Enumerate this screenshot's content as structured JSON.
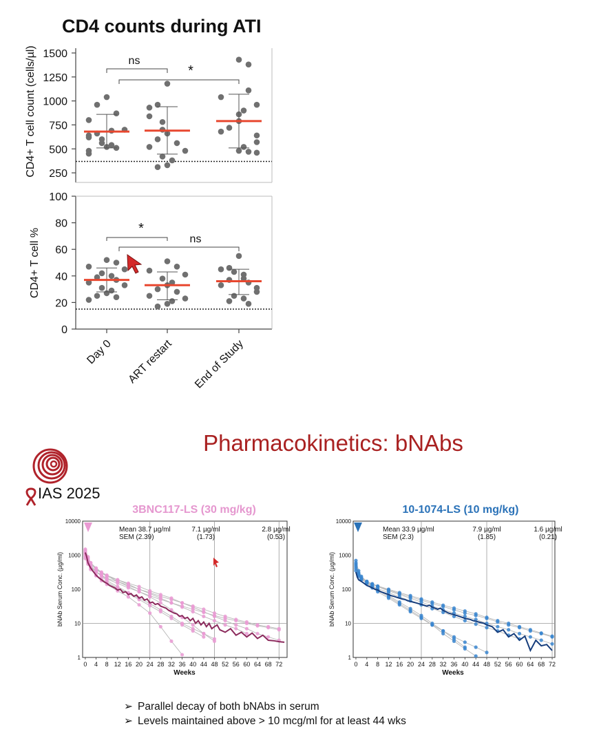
{
  "cd4_panel": {
    "title": "CD4 counts during ATI",
    "categories": [
      "Day 0",
      "ART restart",
      "End of Study"
    ],
    "accent_color": "#e8472f",
    "dot_color": "#707070"
  },
  "chart_data": [
    {
      "type": "scatter",
      "title": "CD4 counts during ATI",
      "ylabel": "CD4+ T cell count (cells/µl)",
      "categories": [
        "Day 0",
        "ART restart",
        "End of Study"
      ],
      "ylim": [
        150,
        1550
      ],
      "yticks": [
        250,
        500,
        750,
        1000,
        1250,
        1500
      ],
      "reference_line": 350,
      "median": [
        680,
        690,
        790
      ],
      "error_bars": [
        [
          510,
          860
        ],
        [
          445,
          940
        ],
        [
          510,
          1070
        ]
      ],
      "points": [
        [
          1040,
          960,
          870,
          800,
          700,
          690,
          660,
          640,
          620,
          600,
          560,
          540,
          520,
          510,
          480,
          450
        ],
        [
          1180,
          960,
          930,
          840,
          780,
          700,
          660,
          600,
          560,
          520,
          480,
          420,
          380,
          330,
          310
        ],
        [
          1430,
          1380,
          1110,
          1040,
          960,
          900,
          860,
          790,
          720,
          680,
          640,
          570,
          520,
          480,
          470,
          460
        ]
      ],
      "annotations": [
        {
          "label": "ns",
          "from": "Day 0",
          "to": "ART restart"
        },
        {
          "label": "*",
          "from": "Day 0",
          "to": "End of Study"
        }
      ]
    },
    {
      "type": "scatter",
      "ylabel": "CD4+ T cell %",
      "categories": [
        "Day 0",
        "ART restart",
        "End of Study"
      ],
      "ylim": [
        0,
        100
      ],
      "yticks": [
        0,
        20,
        40,
        60,
        80,
        100
      ],
      "reference_line": 15,
      "median": [
        37,
        33,
        36
      ],
      "error_bars": [
        [
          28,
          46
        ],
        [
          22,
          43
        ],
        [
          26,
          45
        ]
      ],
      "points": [
        [
          52,
          50,
          47,
          45,
          42,
          40,
          39,
          37,
          35,
          33,
          31,
          29,
          27,
          25,
          24,
          22
        ],
        [
          51,
          47,
          44,
          41,
          38,
          35,
          33,
          30,
          28,
          25,
          23,
          21,
          19,
          17
        ],
        [
          55,
          46,
          45,
          43,
          41,
          38,
          37,
          35,
          33,
          31,
          28,
          25,
          23,
          21,
          19
        ]
      ],
      "annotations": [
        {
          "label": "*",
          "from": "Day 0",
          "to": "ART restart"
        },
        {
          "label": "ns",
          "from": "Day 0",
          "to": "End of Study"
        }
      ]
    },
    {
      "type": "line",
      "title": "3BNC117-LS (30 mg/kg)",
      "xlabel": "Weeks",
      "ylabel": "bNAb Serum Conc. (µg/ml)",
      "yscale": "log",
      "xlim": [
        -1,
        75
      ],
      "ylim": [
        1,
        10000
      ],
      "xticks": [
        0,
        4,
        8,
        12,
        16,
        20,
        24,
        28,
        32,
        36,
        40,
        44,
        48,
        52,
        56,
        60,
        64,
        68,
        72
      ],
      "yticks": [
        1,
        10,
        100,
        1000,
        10000
      ],
      "color": "#8b2a5c",
      "light_color": "#e3a7d0",
      "marker_color": "#ea9ad3",
      "vlines": [
        24,
        48,
        72
      ],
      "hline": 10,
      "stats": [
        {
          "mean": "Mean 38.7 µg/ml",
          "sem": "SEM (2.39)"
        },
        {
          "mean": "7.1 µg/ml",
          "sem": "(1.73)"
        },
        {
          "mean": "2.8 µg/ml",
          "sem": "(0.53)"
        }
      ],
      "mean_series": {
        "x": [
          0,
          0.5,
          1,
          2,
          3,
          4,
          5,
          6,
          7,
          8,
          9,
          10,
          11,
          12,
          13,
          14,
          15,
          16,
          17,
          18,
          19,
          20,
          21,
          22,
          23,
          24,
          25,
          26,
          27,
          28,
          29,
          30,
          31,
          32,
          33,
          34,
          35,
          36,
          37,
          38,
          39,
          40,
          41,
          42,
          43,
          44,
          45,
          46,
          47,
          48,
          49,
          50,
          52,
          54,
          56,
          58,
          60,
          62,
          64,
          66,
          68,
          70,
          72,
          74
        ],
        "y": [
          1200,
          900,
          600,
          420,
          330,
          260,
          220,
          190,
          165,
          150,
          130,
          120,
          110,
          95,
          100,
          80,
          85,
          70,
          75,
          62,
          68,
          55,
          60,
          48,
          52,
          40,
          42,
          36,
          38,
          32,
          30,
          28,
          24,
          22,
          20,
          19,
          16,
          17,
          14,
          15,
          12,
          14,
          10,
          12,
          9,
          11,
          8,
          10,
          7,
          8,
          9,
          6.5,
          5.5,
          7,
          4.5,
          5.5,
          4,
          5.2,
          3.6,
          4.5,
          3.2,
          3.1,
          2.9,
          2.8
        ]
      },
      "individual_series": [
        {
          "x": [
            0,
            1,
            2,
            4,
            6,
            8,
            12,
            16,
            20,
            24,
            28,
            32,
            36,
            40,
            44,
            48
          ],
          "y": [
            1500,
            900,
            600,
            400,
            300,
            250,
            170,
            120,
            85,
            60,
            40,
            25,
            15,
            9,
            5,
            3
          ]
        },
        {
          "x": [
            0,
            1,
            2,
            4,
            6,
            8,
            12,
            16,
            20,
            24,
            28,
            32,
            36,
            40,
            44,
            48,
            52,
            56,
            60,
            64,
            68,
            72
          ],
          "y": [
            1300,
            800,
            550,
            380,
            300,
            240,
            190,
            150,
            120,
            90,
            70,
            55,
            40,
            30,
            22,
            16,
            12,
            9,
            7,
            5,
            4,
            3.2
          ]
        },
        {
          "x": [
            0,
            1,
            2,
            4,
            6,
            8,
            12,
            16,
            20,
            24,
            28,
            32,
            36,
            40,
            44,
            48,
            52,
            56,
            60,
            64,
            68,
            72
          ],
          "y": [
            1000,
            700,
            480,
            330,
            260,
            210,
            170,
            130,
            100,
            80,
            62,
            50,
            40,
            32,
            26,
            20,
            16,
            13,
            11,
            9,
            8,
            7
          ]
        },
        {
          "x": [
            0,
            1,
            2,
            4,
            6,
            8,
            12,
            16,
            20,
            24,
            28,
            32,
            36
          ],
          "y": [
            1100,
            600,
            400,
            250,
            180,
            140,
            90,
            60,
            35,
            20,
            8,
            3,
            1.2
          ]
        },
        {
          "x": [
            0,
            1,
            2,
            4,
            6,
            8,
            12,
            16,
            20,
            24,
            28,
            32,
            36,
            40,
            44,
            48,
            52,
            56,
            60,
            64,
            68,
            72
          ],
          "y": [
            900,
            650,
            450,
            320,
            250,
            200,
            150,
            110,
            85,
            65,
            50,
            40,
            32,
            26,
            21,
            17,
            14,
            12,
            10,
            8.5,
            7.5,
            6.5
          ]
        },
        {
          "x": [
            0,
            1,
            2,
            4,
            6,
            8,
            12,
            16,
            20,
            24,
            28,
            32,
            36,
            40,
            44,
            48
          ],
          "y": [
            1200,
            750,
            500,
            330,
            240,
            180,
            120,
            80,
            55,
            38,
            25,
            16,
            10,
            7,
            5,
            3.5
          ]
        },
        {
          "x": [
            0,
            1,
            2,
            4,
            6,
            8,
            12,
            16,
            20,
            24,
            28,
            32,
            36,
            40,
            44,
            48,
            52,
            56,
            60
          ],
          "y": [
            1400,
            850,
            600,
            420,
            320,
            260,
            190,
            140,
            100,
            75,
            55,
            40,
            30,
            22,
            16,
            12,
            9,
            7,
            5
          ]
        },
        {
          "x": [
            0,
            1,
            2,
            4,
            6,
            8,
            12,
            16,
            20,
            24,
            28,
            32,
            36,
            40,
            44
          ],
          "y": [
            800,
            550,
            380,
            260,
            200,
            160,
            110,
            75,
            50,
            33,
            22,
            14,
            9,
            6,
            4
          ]
        }
      ]
    },
    {
      "type": "line",
      "title": "10-1074-LS (10 mg/kg)",
      "xlabel": "Weeks",
      "ylabel": "bNAb Serum Conc. (µg/ml)",
      "yscale": "log",
      "xlim": [
        -1,
        73
      ],
      "ylim": [
        1,
        10000
      ],
      "xticks": [
        0,
        4,
        8,
        12,
        16,
        20,
        24,
        28,
        32,
        36,
        40,
        44,
        48,
        52,
        56,
        60,
        64,
        68,
        72
      ],
      "yticks": [
        1,
        10,
        100,
        1000,
        10000
      ],
      "color": "#163d7c",
      "light_color": "#9cc3e6",
      "marker_color": "#3a86d0",
      "vlines": [
        24,
        48,
        72
      ],
      "hline": 10,
      "stats": [
        {
          "mean": "Mean 33.9 µg/ml",
          "sem": "SEM (2.3)"
        },
        {
          "mean": "7.9 µg/ml",
          "sem": "(1.85)"
        },
        {
          "mean": "1.6 µg/ml",
          "sem": "(0.21)"
        }
      ],
      "mean_series": {
        "x": [
          0,
          0.5,
          1,
          2,
          3,
          4,
          5,
          6,
          7,
          8,
          9,
          10,
          11,
          12,
          13,
          14,
          15,
          16,
          17,
          18,
          19,
          20,
          21,
          22,
          23,
          24,
          25,
          26,
          27,
          28,
          29,
          30,
          31,
          32,
          33,
          34,
          35,
          36,
          37,
          38,
          39,
          40,
          41,
          42,
          43,
          44,
          45,
          46,
          47,
          48,
          49,
          50,
          52,
          54,
          56,
          58,
          60,
          62,
          64,
          66,
          68,
          70,
          72
        ],
        "y": [
          320,
          230,
          190,
          170,
          150,
          130,
          120,
          110,
          100,
          95,
          85,
          80,
          75,
          70,
          65,
          62,
          58,
          55,
          52,
          50,
          46,
          44,
          42,
          40,
          38,
          36,
          34,
          32,
          34,
          30,
          28,
          26,
          28,
          24,
          22,
          20,
          19,
          18,
          17,
          16,
          15,
          14,
          13.5,
          13,
          12,
          11.5,
          11,
          10.5,
          10,
          9,
          8.5,
          8,
          5.5,
          6.5,
          4,
          5,
          3.2,
          4.2,
          1.6,
          3.2,
          2.2,
          2.4,
          1.6
        ]
      },
      "individual_series": [
        {
          "x": [
            0,
            1,
            2,
            4,
            6,
            8,
            12,
            16,
            20,
            24,
            28,
            32,
            36,
            40,
            44,
            48,
            52,
            56,
            60,
            64,
            68,
            72
          ],
          "y": [
            600,
            300,
            220,
            170,
            140,
            120,
            90,
            70,
            55,
            42,
            32,
            25,
            20,
            16,
            13,
            10,
            8,
            6.5,
            5,
            4,
            3.2,
            2.5
          ]
        },
        {
          "x": [
            0,
            1,
            2,
            4,
            6,
            8,
            12,
            16,
            20,
            24,
            28,
            32,
            36,
            40,
            44
          ],
          "y": [
            500,
            280,
            200,
            150,
            120,
            95,
            60,
            38,
            24,
            15,
            9,
            5,
            3,
            1.8,
            1.1
          ]
        },
        {
          "x": [
            0,
            1,
            2,
            4,
            6,
            8,
            12,
            16,
            20,
            24,
            28,
            32,
            36,
            40,
            44,
            48,
            52,
            56,
            60,
            64,
            68,
            72
          ],
          "y": [
            400,
            260,
            210,
            170,
            145,
            125,
            100,
            80,
            65,
            52,
            42,
            34,
            28,
            23,
            19,
            15,
            12,
            10,
            8,
            6.5,
            5.2,
            4.2
          ]
        },
        {
          "x": [
            0,
            1,
            2,
            4,
            6,
            8,
            12,
            16,
            20,
            24,
            28,
            32,
            36,
            40
          ],
          "y": [
            700,
            350,
            240,
            170,
            130,
            100,
            65,
            42,
            27,
            17,
            10,
            6,
            3.5,
            2
          ]
        },
        {
          "x": [
            0,
            1,
            2,
            4,
            6,
            8,
            12,
            16,
            20,
            24,
            28,
            32,
            36,
            40,
            44,
            48,
            52,
            56,
            60
          ],
          "y": [
            450,
            270,
            200,
            155,
            125,
            105,
            80,
            60,
            46,
            35,
            27,
            21,
            16,
            12,
            9.5,
            7.5,
            6,
            4.5,
            3.5
          ]
        },
        {
          "x": [
            0,
            1,
            2,
            4,
            6,
            8,
            12,
            16,
            20,
            24,
            28,
            32,
            36,
            40,
            44,
            48,
            52,
            56,
            60,
            64,
            68,
            72
          ],
          "y": [
            350,
            240,
            190,
            160,
            140,
            120,
            95,
            75,
            60,
            48,
            38,
            31,
            25,
            20,
            17,
            14,
            11,
            9,
            7.5,
            6,
            5,
            4
          ]
        },
        {
          "x": [
            0,
            1,
            2,
            4,
            6,
            8,
            12,
            16,
            20,
            24,
            28,
            32,
            36,
            40,
            44,
            48
          ],
          "y": [
            550,
            300,
            210,
            150,
            110,
            85,
            55,
            35,
            22,
            14,
            9,
            6,
            4,
            2.8,
            2,
            1.4
          ]
        }
      ]
    }
  ],
  "pk_section": {
    "title": "Pharmacokinetics: bNAbs",
    "title_color": "#a92121",
    "logo_text": "IAS 2025",
    "logo_color": "#b0232b"
  },
  "bullets": [
    "Parallel decay of both bNAbs in serum",
    "Levels maintained above > 10 mcg/ml for at least 44 wks"
  ],
  "bullet_symbol": "➢"
}
